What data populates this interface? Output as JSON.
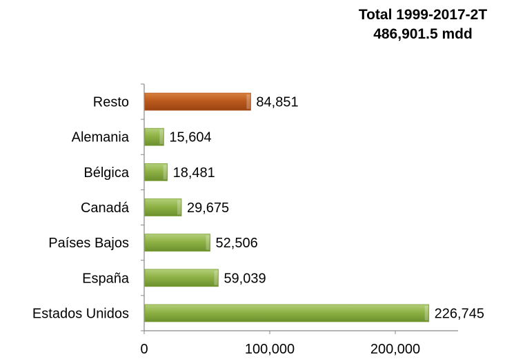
{
  "chart_data": {
    "type": "bar",
    "orientation": "horizontal",
    "title": "Total 1999-2017-2T",
    "subtitle": "486,901.5 mdd",
    "categories": [
      "Estados Unidos",
      "España",
      "Países Bajos",
      "Canadá",
      "Bélgica",
      "Alemania",
      "Resto"
    ],
    "values": [
      226745,
      59039,
      52506,
      29675,
      18481,
      15604,
      84851
    ],
    "data_labels": [
      "226,745",
      "59,039",
      "52,506",
      "29,675",
      "18,481",
      "15,604",
      "84,851"
    ],
    "bar_colors": [
      "#7fa33a",
      "#7fa33a",
      "#7fa33a",
      "#7fa33a",
      "#7fa33a",
      "#7fa33a",
      "#b8561a"
    ],
    "xlim": [
      0,
      250000
    ],
    "x_ticks": [
      0,
      100000,
      200000
    ],
    "x_tick_labels": [
      "0",
      "100,000",
      "200,000"
    ],
    "xlabel": "",
    "ylabel": "",
    "grid": false,
    "legend": "none"
  }
}
